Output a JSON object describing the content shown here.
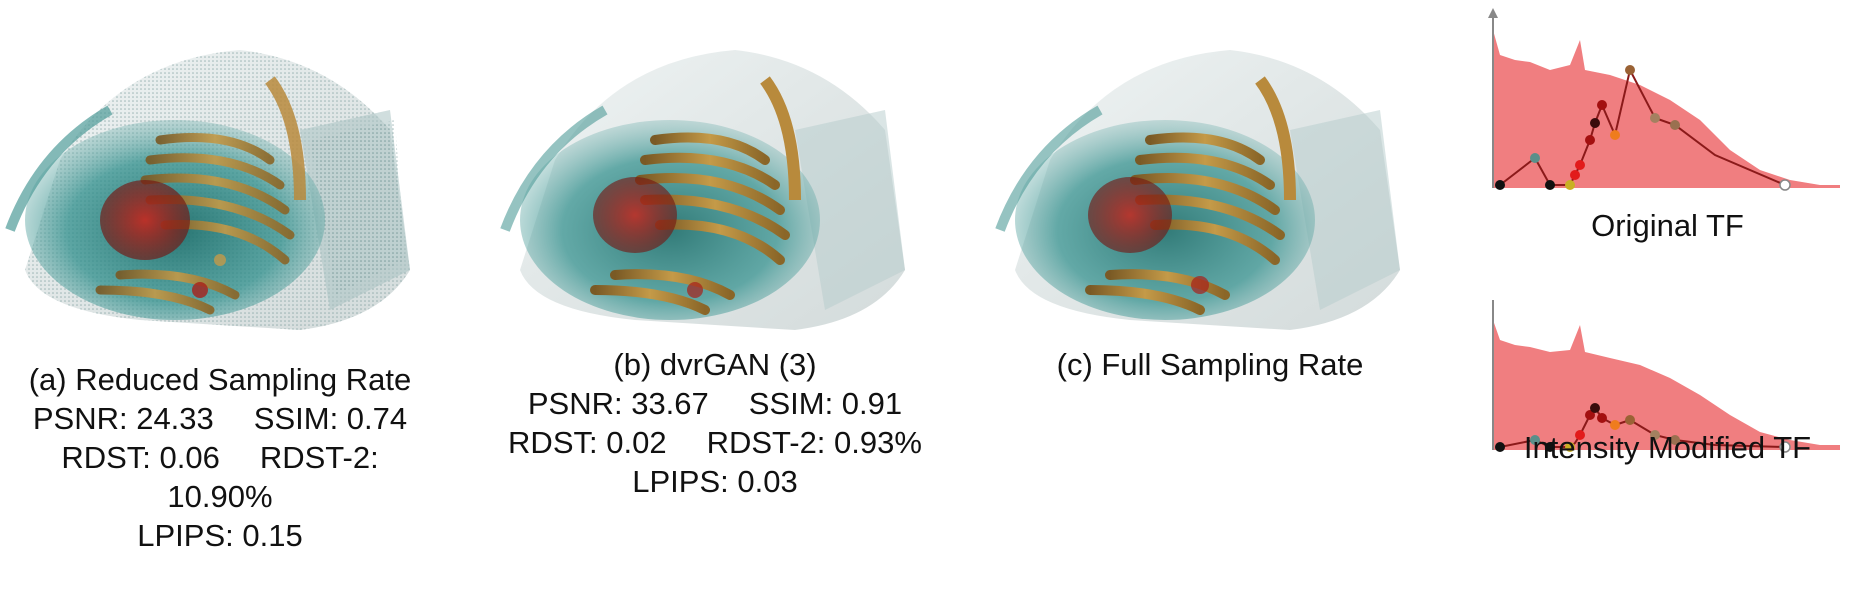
{
  "panels": [
    {
      "id": "a",
      "caption": "(a) Reduced Sampling Rate",
      "metrics": {
        "psnr": "PSNR: 24.33",
        "ssim": "SSIM: 0.74",
        "rdst": "RDST: 0.06",
        "rdst2_a": "RDST-2:",
        "rdst2_b": "10.90%",
        "lpips": "LPIPS: 0.15"
      }
    },
    {
      "id": "b",
      "caption": "(b) dvrGAN (3)",
      "metrics": {
        "psnr": "PSNR: 33.67",
        "ssim": "SSIM: 0.91",
        "rdst": "RDST: 0.02",
        "rdst2": "RDST-2: 0.93%",
        "lpips": "LPIPS: 0.03"
      }
    },
    {
      "id": "c",
      "caption": "(c) Full Sampling Rate"
    }
  ],
  "transfer_functions": [
    {
      "label": "Original TF",
      "histogram_color": "#f07e80",
      "curve_color": "#8b1a1a"
    },
    {
      "label": "Intensity Modified TF",
      "histogram_color": "#f07e80",
      "curve_color": "#8b1a1a"
    }
  ],
  "colors": {
    "teal": "#2f8f8c",
    "bone": "#b88a3c",
    "organ_red": "#a8201a",
    "shell_gray": "#9fb0b0"
  }
}
